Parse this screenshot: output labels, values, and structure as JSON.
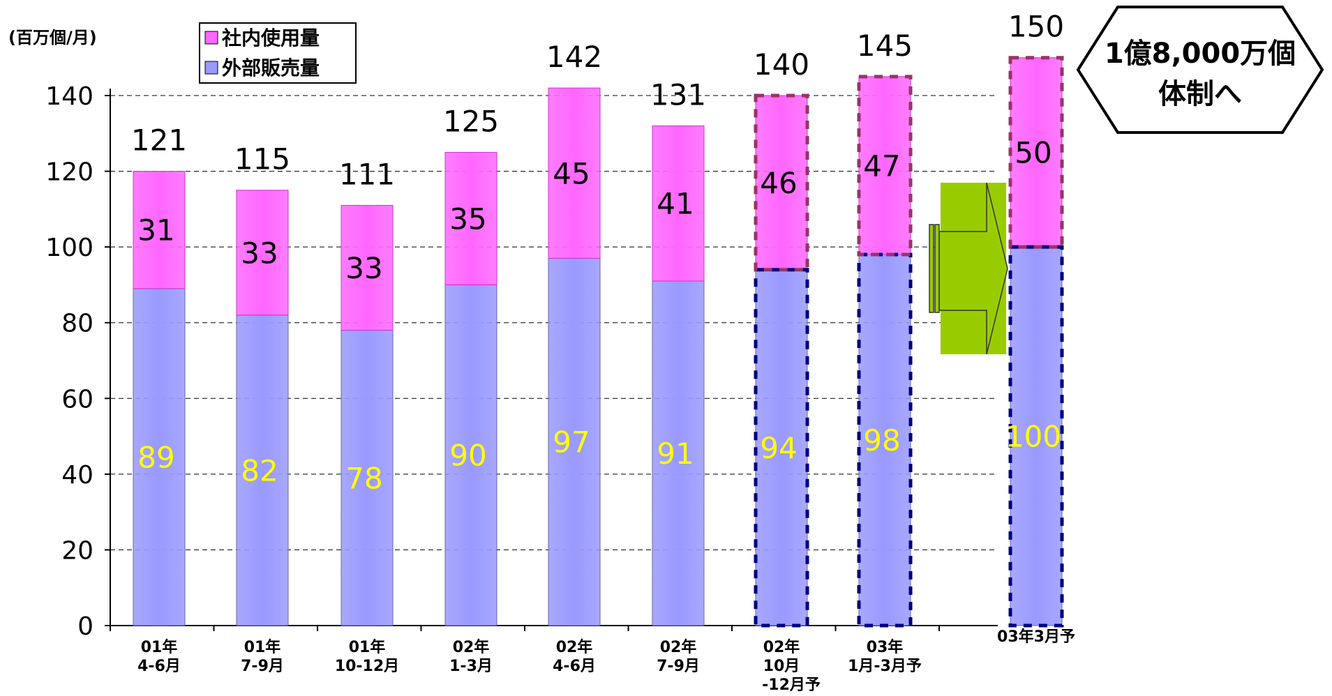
{
  "chart_data": {
    "type": "bar",
    "stacked": true,
    "unit_label": "(百万個/月)",
    "categories": [
      [
        "01年",
        "4-6月"
      ],
      [
        "01年",
        "7-9月"
      ],
      [
        "01年",
        "10-12月"
      ],
      [
        "02年",
        "1-3月"
      ],
      [
        "02年",
        "4-6月"
      ],
      [
        "02年",
        "7-9月"
      ],
      [
        "02年",
        "10月",
        "-12月予"
      ],
      [
        "03年",
        "1月-3月予"
      ],
      [
        "03年3月予"
      ]
    ],
    "series": [
      {
        "name": "外部販売量",
        "color": "#9999ff",
        "values": [
          89,
          82,
          78,
          90,
          97,
          91,
          94,
          98,
          100
        ]
      },
      {
        "name": "社内使用量",
        "color": "#ff66ff",
        "values": [
          31,
          33,
          33,
          35,
          45,
          41,
          46,
          47,
          50
        ]
      }
    ],
    "totals": [
      121,
      115,
      111,
      125,
      142,
      131,
      140,
      145,
      150
    ],
    "forecast": [
      false,
      false,
      false,
      false,
      false,
      false,
      true,
      true,
      true
    ],
    "ylim": [
      0,
      140
    ],
    "yticks": [
      0,
      20,
      40,
      60,
      80,
      100,
      120,
      140
    ],
    "grid": true,
    "legend_position": "top-left",
    "callout": [
      "1億8,000万個",
      "体制へ"
    ]
  }
}
